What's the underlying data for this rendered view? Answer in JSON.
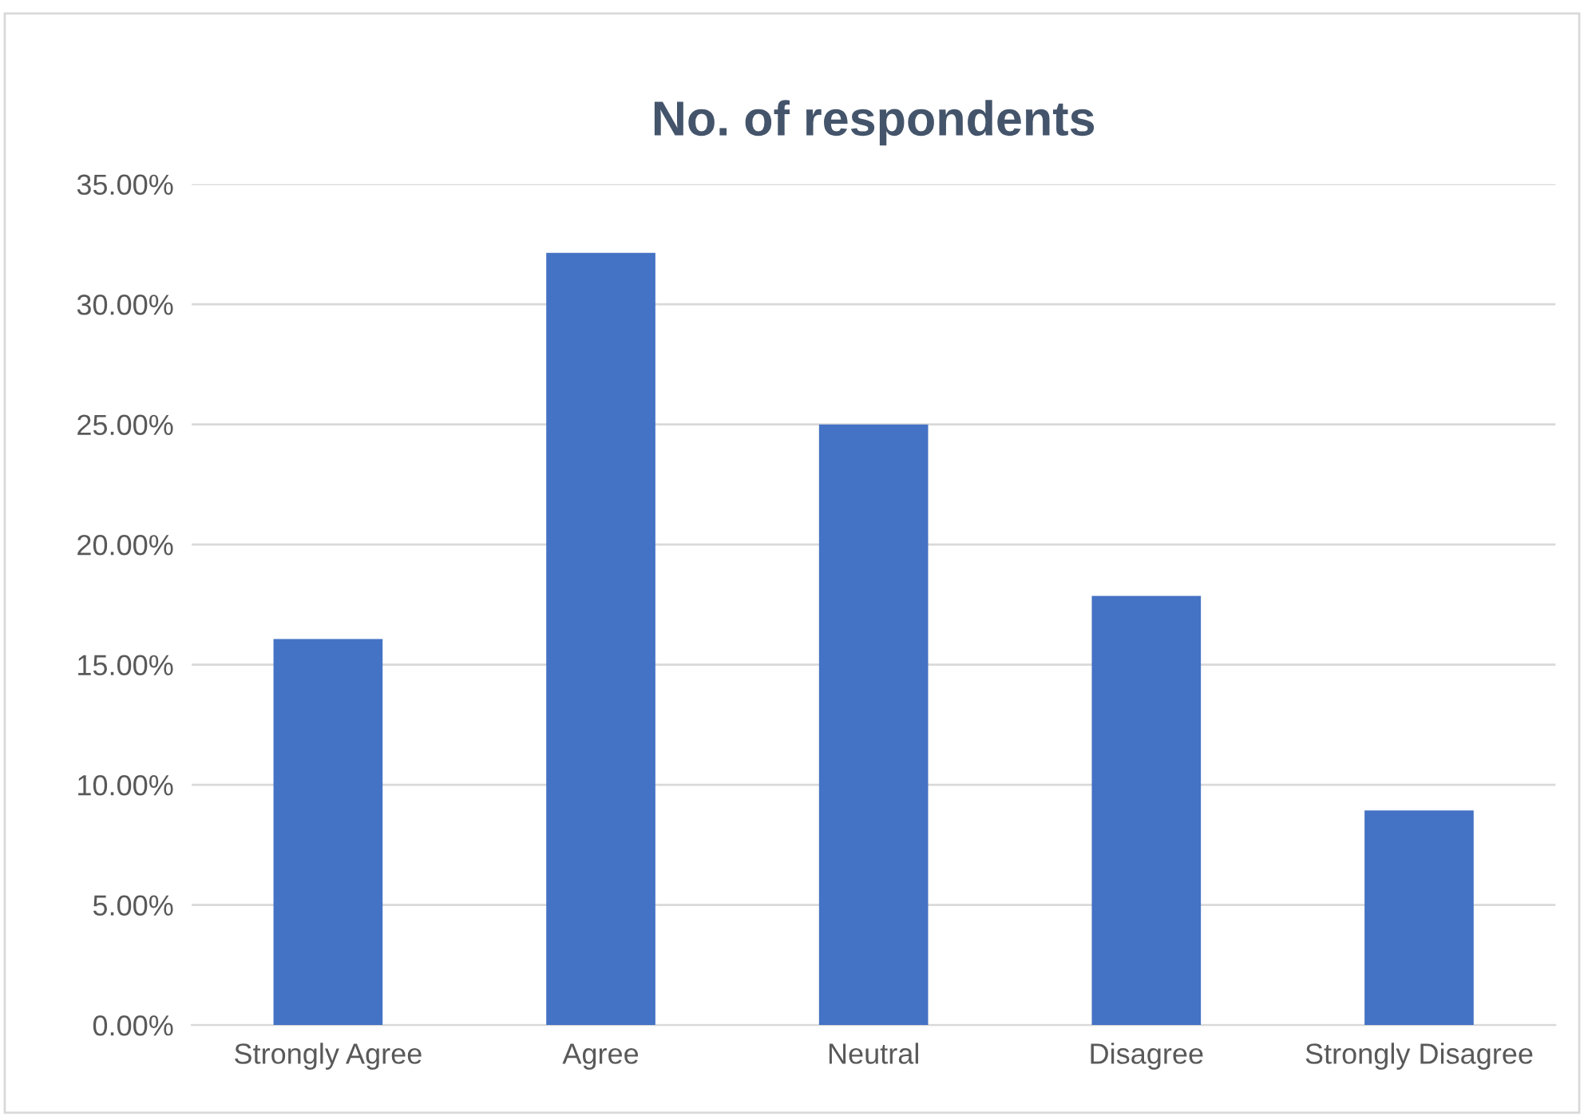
{
  "chart_data": {
    "type": "bar",
    "title": "No. of respondents",
    "categories": [
      "Strongly Agree",
      "Agree",
      "Neutral",
      "Disagree",
      "Strongly Disagree"
    ],
    "values": [
      16.07,
      32.14,
      25.0,
      17.86,
      8.93
    ],
    "color": "#4472c4",
    "ylim": [
      0,
      35
    ],
    "yticks": [
      {
        "value": 0,
        "label": "0.00%"
      },
      {
        "value": 5,
        "label": "5.00%"
      },
      {
        "value": 10,
        "label": "10.00%"
      },
      {
        "value": 15,
        "label": "15.00%"
      },
      {
        "value": 20,
        "label": "20.00%"
      },
      {
        "value": 25,
        "label": "25.00%"
      },
      {
        "value": 30,
        "label": "30.00%"
      },
      {
        "value": 35,
        "label": "35.00%"
      }
    ],
    "grid": "y"
  }
}
